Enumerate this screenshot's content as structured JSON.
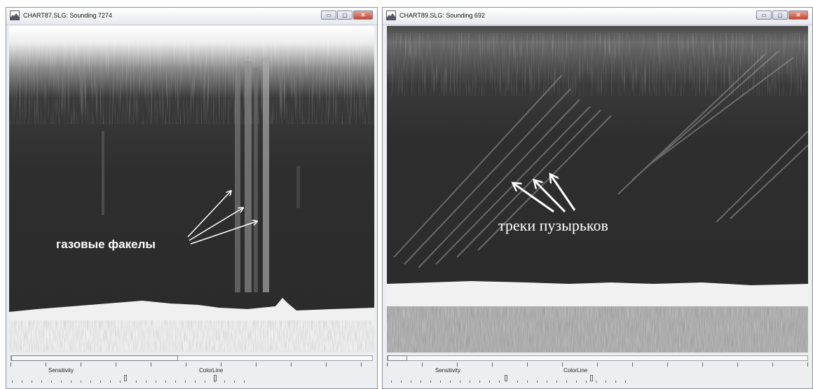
{
  "windows": [
    {
      "title": "CHART87.SLG: Sounding 7274",
      "sensitivity_label": "Sensitivity",
      "colorline_label": "ColorLine"
    },
    {
      "title": "CHART89.SLG: Sounding 692",
      "sensitivity_label": "Sensitivity",
      "colorline_label": "ColorLine"
    }
  ],
  "window_controls": {
    "minimize": "▭",
    "maximize": "▢",
    "close": "✕"
  },
  "annotations": {
    "gas_flares": "газовые факелы",
    "bubble_tracks": "треки пузырьков"
  },
  "colors": {
    "water_column": "#2d2d2d",
    "seabed": "#f2f2f2",
    "sediment": "#a8a8a8",
    "annotation": "#ffffff"
  }
}
